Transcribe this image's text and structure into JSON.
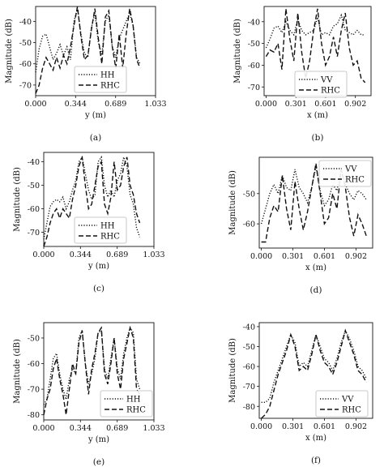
{
  "chart_data": [
    {
      "type": "line",
      "caption": "(a)",
      "xlabel": "y (m)",
      "ylabel": "Magnitude (dB)",
      "xticks": [
        "0.000",
        "0.344",
        "0.689",
        "1.033"
      ],
      "xlim": [
        0,
        1.033
      ],
      "yticks": [
        -40,
        -50,
        -60,
        -70
      ],
      "ylim": [
        -75,
        -33
      ],
      "legend": "left-bottom",
      "series": [
        {
          "name": "HH",
          "style": "dotted",
          "x": [
            0.0,
            0.03,
            0.06,
            0.09,
            0.12,
            0.15,
            0.18,
            0.21,
            0.24,
            0.27,
            0.3,
            0.33,
            0.36,
            0.39,
            0.42,
            0.45,
            0.48,
            0.51,
            0.54,
            0.57,
            0.6,
            0.63,
            0.66,
            0.69,
            0.72,
            0.75,
            0.78,
            0.81,
            0.84,
            0.87,
            0.9
          ],
          "y": [
            -64,
            -53,
            -47,
            -46,
            -52,
            -58,
            -55,
            -51,
            -56,
            -52,
            -58,
            -40,
            -34,
            -46,
            -55,
            -57,
            -43,
            -36,
            -50,
            -56,
            -40,
            -37,
            -52,
            -57,
            -48,
            -44,
            -40,
            -36,
            -42,
            -57,
            -60
          ]
        },
        {
          "name": "RHC",
          "style": "dashed",
          "x": [
            0.0,
            0.03,
            0.06,
            0.09,
            0.12,
            0.15,
            0.18,
            0.21,
            0.24,
            0.27,
            0.3,
            0.33,
            0.36,
            0.39,
            0.42,
            0.45,
            0.48,
            0.51,
            0.54,
            0.57,
            0.6,
            0.63,
            0.66,
            0.69,
            0.72,
            0.75,
            0.78,
            0.81,
            0.84,
            0.87,
            0.9
          ],
          "y": [
            -74,
            -70,
            -62,
            -57,
            -60,
            -63,
            -57,
            -62,
            -56,
            -60,
            -52,
            -42,
            -33,
            -47,
            -58,
            -56,
            -44,
            -34,
            -48,
            -60,
            -38,
            -35,
            -52,
            -62,
            -46,
            -62,
            -46,
            -34,
            -42,
            -58,
            -62
          ]
        }
      ]
    },
    {
      "type": "line",
      "caption": "(b)",
      "xlabel": "x (m)",
      "ylabel": "Magnitude (dB)",
      "xticks": [
        "0.000",
        "0.301",
        "0.601",
        "0.902"
      ],
      "xlim": [
        -0.02,
        1.06
      ],
      "yticks": [
        -40,
        -50,
        -60,
        -70
      ],
      "ylim": [
        -74,
        -33
      ],
      "legend": "lower-center",
      "series": [
        {
          "name": "VV",
          "style": "dotted",
          "x": [
            0.0,
            0.04,
            0.08,
            0.12,
            0.16,
            0.2,
            0.24,
            0.28,
            0.32,
            0.36,
            0.4,
            0.44,
            0.48,
            0.52,
            0.56,
            0.6,
            0.64,
            0.68,
            0.72,
            0.76,
            0.8,
            0.84,
            0.88,
            0.92,
            0.96,
            1.0
          ],
          "y": [
            -52,
            -48,
            -43,
            -42,
            -45,
            -40,
            -44,
            -46,
            -39,
            -44,
            -46,
            -45,
            -44,
            -38,
            -46,
            -45,
            -46,
            -42,
            -41,
            -37,
            -44,
            -45,
            -46,
            -44,
            -46,
            -46
          ]
        },
        {
          "name": "RHC",
          "style": "dashed",
          "x": [
            0.0,
            0.04,
            0.08,
            0.12,
            0.16,
            0.2,
            0.24,
            0.28,
            0.32,
            0.36,
            0.4,
            0.44,
            0.48,
            0.52,
            0.56,
            0.6,
            0.64,
            0.68,
            0.72,
            0.76,
            0.8,
            0.84,
            0.88,
            0.92,
            0.96,
            1.0
          ],
          "y": [
            -56,
            -53,
            -54,
            -50,
            -62,
            -34,
            -48,
            -58,
            -36,
            -54,
            -66,
            -58,
            -44,
            -34,
            -50,
            -60,
            -56,
            -47,
            -56,
            -44,
            -36,
            -52,
            -60,
            -58,
            -66,
            -68
          ]
        }
      ]
    },
    {
      "type": "line",
      "caption": "(c)",
      "xlabel": "y (m)",
      "ylabel": "Magnitude (dB)",
      "xticks": [
        "0.000",
        "0.344",
        "0.689",
        "1.033"
      ],
      "xlim": [
        0,
        1.033
      ],
      "yticks": [
        -40,
        -50,
        -60,
        -70
      ],
      "ylim": [
        -76,
        -36
      ],
      "legend": "lower-center",
      "series": [
        {
          "name": "HH",
          "style": "dotted",
          "x": [
            0.0,
            0.03,
            0.06,
            0.09,
            0.12,
            0.15,
            0.18,
            0.21,
            0.24,
            0.27,
            0.3,
            0.33,
            0.36,
            0.39,
            0.42,
            0.45,
            0.48,
            0.51,
            0.54,
            0.57,
            0.6,
            0.63,
            0.66,
            0.69,
            0.72,
            0.75,
            0.78,
            0.81,
            0.84,
            0.87,
            0.9
          ],
          "y": [
            -73,
            -66,
            -59,
            -57,
            -56,
            -57,
            -55,
            -60,
            -57,
            -52,
            -48,
            -40,
            -38,
            -45,
            -52,
            -56,
            -54,
            -40,
            -38,
            -50,
            -55,
            -52,
            -55,
            -48,
            -45,
            -38,
            -42,
            -54,
            -58,
            -68,
            -72
          ]
        },
        {
          "name": "RHC",
          "style": "dashed",
          "x": [
            0.0,
            0.03,
            0.06,
            0.09,
            0.12,
            0.15,
            0.18,
            0.21,
            0.24,
            0.27,
            0.3,
            0.33,
            0.36,
            0.39,
            0.42,
            0.45,
            0.48,
            0.51,
            0.54,
            0.57,
            0.6,
            0.63,
            0.66,
            0.69,
            0.72,
            0.75,
            0.78,
            0.81,
            0.84,
            0.87,
            0.9
          ],
          "y": [
            -76,
            -72,
            -66,
            -62,
            -60,
            -64,
            -60,
            -62,
            -64,
            -56,
            -50,
            -42,
            -38,
            -50,
            -60,
            -58,
            -50,
            -42,
            -40,
            -58,
            -62,
            -55,
            -40,
            -52,
            -50,
            -42,
            -38,
            -50,
            -54,
            -62,
            -66
          ]
        }
      ]
    },
    {
      "type": "line",
      "caption": "(d)",
      "xlabel": "x (m)",
      "ylabel": "Magnitude (dB)",
      "xticks": [
        "0.000",
        "0.301",
        "0.601",
        "0.902"
      ],
      "xlim": [
        -0.02,
        1.06
      ],
      "yticks": [
        -50,
        -60
      ],
      "ylim": [
        -68,
        -38
      ],
      "legend": "top-right",
      "series": [
        {
          "name": "VV",
          "style": "dotted",
          "x": [
            0.0,
            0.04,
            0.08,
            0.12,
            0.16,
            0.2,
            0.24,
            0.28,
            0.32,
            0.36,
            0.4,
            0.44,
            0.48,
            0.52,
            0.56,
            0.6,
            0.64,
            0.68,
            0.72,
            0.76,
            0.8,
            0.84,
            0.88,
            0.92,
            0.96,
            1.0
          ],
          "y": [
            -60,
            -55,
            -50,
            -47,
            -50,
            -44,
            -48,
            -49,
            -42,
            -48,
            -50,
            -53,
            -48,
            -41,
            -49,
            -54,
            -52,
            -47,
            -49,
            -42,
            -47,
            -50,
            -52,
            -49,
            -50,
            -52
          ]
        },
        {
          "name": "RHC",
          "style": "dashed",
          "x": [
            0.0,
            0.04,
            0.08,
            0.12,
            0.16,
            0.2,
            0.24,
            0.28,
            0.32,
            0.36,
            0.4,
            0.44,
            0.48,
            0.52,
            0.56,
            0.6,
            0.64,
            0.68,
            0.72,
            0.76,
            0.8,
            0.84,
            0.88,
            0.92,
            0.96,
            1.0
          ],
          "y": [
            -66,
            -66,
            -58,
            -54,
            -56,
            -44,
            -55,
            -62,
            -46,
            -55,
            -62,
            -56,
            -48,
            -40,
            -50,
            -60,
            -58,
            -50,
            -55,
            -42,
            -48,
            -58,
            -64,
            -57,
            -60,
            -64
          ]
        }
      ]
    },
    {
      "type": "line",
      "caption": "(e)",
      "xlabel": "y (m)",
      "ylabel": "Magnitude (dB)",
      "xticks": [
        "0.000",
        "0.344",
        "0.689",
        "1.033"
      ],
      "xlim": [
        0,
        1.033
      ],
      "yticks": [
        -50,
        -60,
        -70,
        -80
      ],
      "ylim": [
        -82,
        -44
      ],
      "legend": "lower-right",
      "series": [
        {
          "name": "HH",
          "style": "dotted",
          "x": [
            0.0,
            0.03,
            0.06,
            0.09,
            0.12,
            0.15,
            0.18,
            0.21,
            0.24,
            0.27,
            0.3,
            0.33,
            0.36,
            0.39,
            0.42,
            0.45,
            0.48,
            0.51,
            0.54,
            0.57,
            0.6,
            0.63,
            0.66,
            0.69,
            0.72,
            0.75,
            0.78,
            0.81,
            0.84,
            0.87,
            0.9
          ],
          "y": [
            -76,
            -74,
            -66,
            -58,
            -56,
            -64,
            -70,
            -74,
            -66,
            -62,
            -64,
            -50,
            -47,
            -60,
            -68,
            -64,
            -58,
            -48,
            -47,
            -62,
            -66,
            -58,
            -50,
            -62,
            -66,
            -56,
            -50,
            -46,
            -48,
            -66,
            -70
          ]
        },
        {
          "name": "RHC",
          "style": "dashed",
          "x": [
            0.0,
            0.03,
            0.06,
            0.09,
            0.12,
            0.15,
            0.18,
            0.21,
            0.24,
            0.27,
            0.3,
            0.33,
            0.36,
            0.39,
            0.42,
            0.45,
            0.48,
            0.51,
            0.54,
            0.57,
            0.6,
            0.63,
            0.66,
            0.69,
            0.72,
            0.75,
            0.78,
            0.81,
            0.84,
            0.87,
            0.9
          ],
          "y": [
            -80,
            -74,
            -70,
            -62,
            -58,
            -66,
            -72,
            -80,
            -70,
            -60,
            -64,
            -52,
            -47,
            -60,
            -72,
            -62,
            -56,
            -48,
            -46,
            -64,
            -68,
            -60,
            -50,
            -64,
            -70,
            -58,
            -52,
            -46,
            -50,
            -70,
            -72
          ]
        }
      ]
    },
    {
      "type": "line",
      "caption": "(f)",
      "xlabel": "x (m)",
      "ylabel": "Magnitude (dB)",
      "xticks": [
        "0.000",
        "0.301",
        "0.601",
        "0.902"
      ],
      "xlim": [
        -0.02,
        1.06
      ],
      "yticks": [
        -40,
        -50,
        -60,
        -70,
        -80
      ],
      "ylim": [
        -86,
        -38
      ],
      "legend": "lower-right",
      "series": [
        {
          "name": "VV",
          "style": "dotted",
          "x": [
            0.0,
            0.04,
            0.08,
            0.12,
            0.16,
            0.2,
            0.24,
            0.28,
            0.32,
            0.36,
            0.4,
            0.44,
            0.48,
            0.52,
            0.56,
            0.6,
            0.64,
            0.68,
            0.72,
            0.76,
            0.8,
            0.84,
            0.88,
            0.92,
            0.96,
            1.0
          ],
          "y": [
            -78,
            -78,
            -76,
            -68,
            -62,
            -56,
            -50,
            -44,
            -48,
            -60,
            -58,
            -60,
            -52,
            -44,
            -50,
            -56,
            -58,
            -62,
            -56,
            -48,
            -42,
            -46,
            -52,
            -60,
            -62,
            -66
          ]
        },
        {
          "name": "RHC",
          "style": "dashed",
          "x": [
            0.0,
            0.04,
            0.08,
            0.12,
            0.16,
            0.2,
            0.24,
            0.28,
            0.32,
            0.36,
            0.4,
            0.44,
            0.48,
            0.52,
            0.56,
            0.6,
            0.64,
            0.68,
            0.72,
            0.76,
            0.8,
            0.84,
            0.88,
            0.92,
            0.96,
            1.0
          ],
          "y": [
            -86,
            -84,
            -80,
            -72,
            -64,
            -58,
            -52,
            -44,
            -50,
            -62,
            -60,
            -62,
            -54,
            -44,
            -52,
            -58,
            -60,
            -64,
            -58,
            -50,
            -42,
            -48,
            -54,
            -62,
            -64,
            -68
          ]
        }
      ]
    }
  ]
}
